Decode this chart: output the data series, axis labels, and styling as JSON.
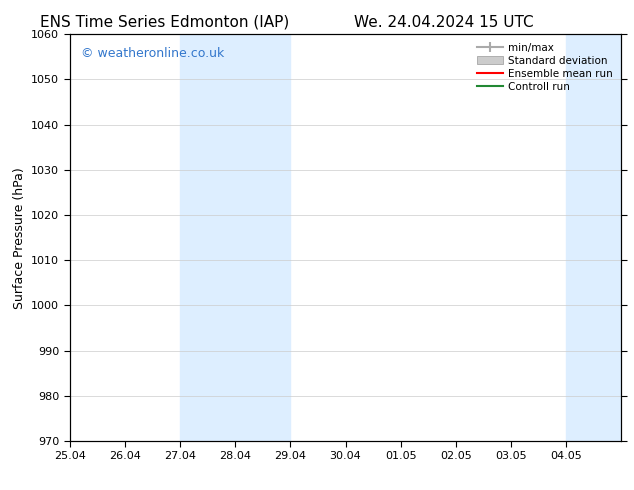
{
  "title_left": "ENS Time Series Edmonton (IAP)",
  "title_right": "We. 24.04.2024 15 UTC",
  "ylabel": "Surface Pressure (hPa)",
  "ylim": [
    970,
    1060
  ],
  "yticks": [
    970,
    980,
    990,
    1000,
    1010,
    1020,
    1030,
    1040,
    1050,
    1060
  ],
  "xlim_start": 0,
  "xlim_end": 10,
  "xtick_labels": [
    "25.04",
    "26.04",
    "27.04",
    "28.04",
    "29.04",
    "30.04",
    "01.05",
    "02.05",
    "03.05",
    "04.05"
  ],
  "xtick_positions": [
    0,
    1,
    2,
    3,
    4,
    5,
    6,
    7,
    8,
    9
  ],
  "shaded_regions": [
    {
      "x_start": 2,
      "x_end": 4,
      "color": "#ddeeff"
    },
    {
      "x_start": 9,
      "x_end": 10,
      "color": "#ddeeff"
    }
  ],
  "watermark_text": "© weatheronline.co.uk",
  "watermark_color": "#3377cc",
  "background_color": "#ffffff",
  "legend_labels": [
    "min/max",
    "Standard deviation",
    "Ensemble mean run",
    "Controll run"
  ],
  "legend_colors": [
    "#aaaaaa",
    "#cccccc",
    "#ff0000",
    "#008000"
  ],
  "title_fontsize": 11,
  "axis_label_fontsize": 9,
  "tick_fontsize": 8,
  "watermark_fontsize": 9
}
